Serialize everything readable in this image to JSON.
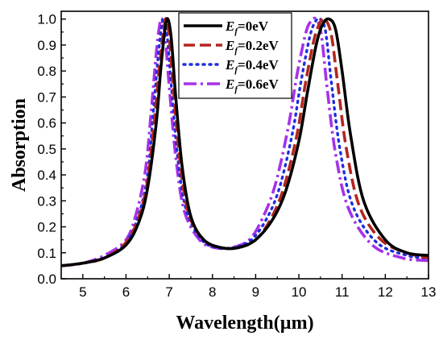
{
  "chart_data": {
    "type": "line",
    "xlabel": "Wavelength(µm)",
    "ylabel": "Absorption",
    "xlim": [
      4.5,
      13
    ],
    "ylim": [
      0.0,
      1.03
    ],
    "xticks": [
      5,
      6,
      7,
      8,
      9,
      10,
      11,
      12,
      13
    ],
    "yticks": [
      0.0,
      0.1,
      0.2,
      0.3,
      0.4,
      0.5,
      0.6,
      0.7,
      0.8,
      0.9,
      1.0
    ],
    "xtick_labels": [
      "5",
      "6",
      "7",
      "8",
      "9",
      "10",
      "11",
      "12",
      "13"
    ],
    "ytick_labels": [
      "0.0",
      "0.1",
      "0.2",
      "0.3",
      "0.4",
      "0.5",
      "0.6",
      "0.7",
      "0.8",
      "0.9",
      "1.0"
    ],
    "legend_placement": "top-center",
    "grid": false,
    "series": [
      {
        "name": "Ef=0eV",
        "legend_main": "E",
        "legend_sub": "f",
        "legend_rest": "=0eV",
        "color": "#000000",
        "dash": "",
        "x": [
          4.5,
          5.0,
          5.5,
          6.0,
          6.3,
          6.5,
          6.7,
          6.8,
          6.9,
          6.97,
          7.05,
          7.15,
          7.3,
          7.5,
          7.8,
          8.2,
          8.6,
          9.0,
          9.4,
          9.7,
          10.0,
          10.2,
          10.4,
          10.55,
          10.7,
          10.85,
          11.0,
          11.2,
          11.5,
          12.0,
          12.5,
          13.0
        ],
        "y": [
          0.05,
          0.06,
          0.08,
          0.13,
          0.22,
          0.35,
          0.6,
          0.8,
          0.96,
          1.0,
          0.92,
          0.7,
          0.43,
          0.24,
          0.15,
          0.12,
          0.12,
          0.15,
          0.23,
          0.34,
          0.53,
          0.72,
          0.9,
          0.98,
          1.0,
          0.96,
          0.8,
          0.55,
          0.3,
          0.15,
          0.1,
          0.09
        ]
      },
      {
        "name": "Ef=0.2eV",
        "legend_main": "E",
        "legend_sub": "f",
        "legend_rest": "=0.2eV",
        "color": "#b3261e",
        "dash": "14 6",
        "x": [
          4.5,
          5.0,
          5.5,
          6.0,
          6.3,
          6.5,
          6.65,
          6.78,
          6.88,
          6.93,
          7.0,
          7.1,
          7.25,
          7.45,
          7.8,
          8.2,
          8.6,
          9.0,
          9.35,
          9.65,
          9.95,
          10.15,
          10.35,
          10.5,
          10.6,
          10.75,
          10.9,
          11.1,
          11.4,
          11.9,
          12.5,
          13.0
        ],
        "y": [
          0.05,
          0.06,
          0.08,
          0.14,
          0.24,
          0.38,
          0.6,
          0.83,
          0.97,
          1.0,
          0.93,
          0.72,
          0.45,
          0.25,
          0.15,
          0.12,
          0.12,
          0.15,
          0.23,
          0.35,
          0.55,
          0.75,
          0.92,
          0.99,
          1.0,
          0.94,
          0.75,
          0.5,
          0.28,
          0.15,
          0.1,
          0.08
        ]
      },
      {
        "name": "Ef=0.4eV",
        "legend_main": "E",
        "legend_sub": "f",
        "legend_rest": "=0.4eV",
        "color": "#1f2de0",
        "dash": "2 6",
        "x": [
          4.5,
          5.0,
          5.5,
          6.0,
          6.3,
          6.5,
          6.62,
          6.74,
          6.83,
          6.88,
          6.95,
          7.05,
          7.2,
          7.4,
          7.75,
          8.1,
          8.5,
          8.9,
          9.25,
          9.55,
          9.85,
          10.05,
          10.25,
          10.38,
          10.5,
          10.62,
          10.75,
          10.95,
          11.25,
          11.8,
          12.5,
          13.0
        ],
        "y": [
          0.05,
          0.06,
          0.08,
          0.14,
          0.25,
          0.4,
          0.62,
          0.85,
          0.98,
          1.0,
          0.94,
          0.74,
          0.46,
          0.26,
          0.15,
          0.12,
          0.12,
          0.15,
          0.23,
          0.35,
          0.56,
          0.76,
          0.93,
          0.99,
          1.0,
          0.95,
          0.76,
          0.5,
          0.28,
          0.14,
          0.09,
          0.08
        ]
      },
      {
        "name": "Ef=0.6eV",
        "legend_main": "E",
        "legend_sub": "f",
        "legend_rest": "=0.6eV",
        "color": "#a632e8",
        "dash": "16 5 3 5",
        "x": [
          4.5,
          5.0,
          5.5,
          6.0,
          6.25,
          6.45,
          6.58,
          6.7,
          6.78,
          6.83,
          6.9,
          7.0,
          7.15,
          7.35,
          7.7,
          8.05,
          8.45,
          8.85,
          9.15,
          9.45,
          9.75,
          9.95,
          10.15,
          10.27,
          10.4,
          10.52,
          10.65,
          10.85,
          11.15,
          11.7,
          12.4,
          13.0
        ],
        "y": [
          0.05,
          0.06,
          0.09,
          0.15,
          0.26,
          0.42,
          0.64,
          0.87,
          0.98,
          1.0,
          0.94,
          0.74,
          0.47,
          0.26,
          0.15,
          0.12,
          0.12,
          0.15,
          0.23,
          0.36,
          0.58,
          0.78,
          0.94,
          0.99,
          1.0,
          0.94,
          0.74,
          0.48,
          0.27,
          0.13,
          0.08,
          0.07
        ]
      }
    ]
  }
}
